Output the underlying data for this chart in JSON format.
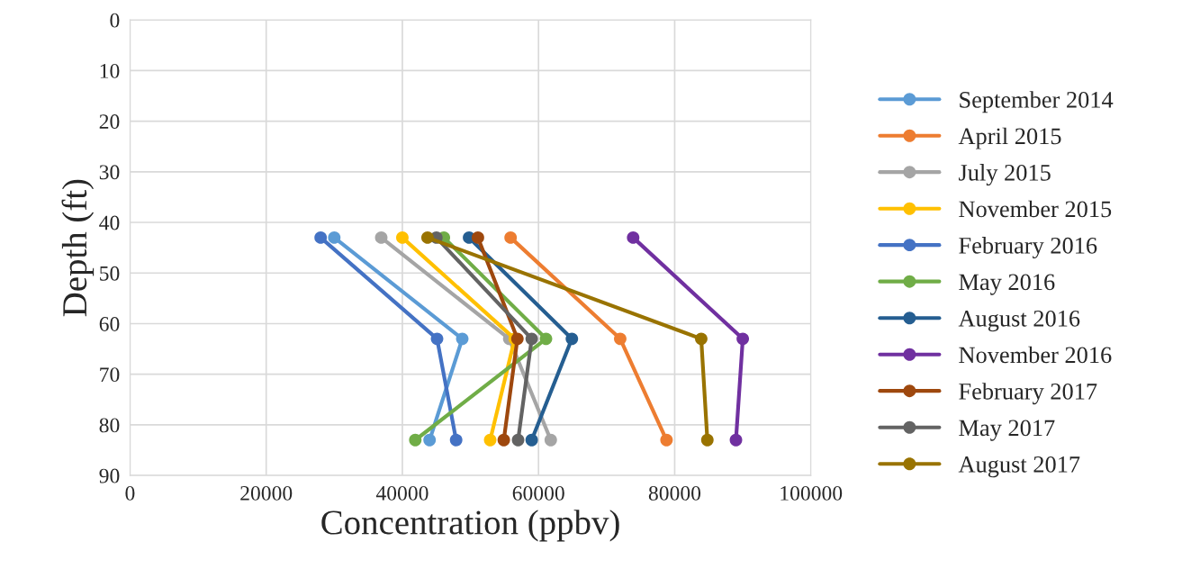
{
  "chart_data": {
    "type": "line",
    "xlabel": "Concentration (ppbv)",
    "ylabel": "Depth (ft)",
    "xlim": [
      0,
      100000
    ],
    "xticks": [
      0,
      20000,
      40000,
      60000,
      80000,
      100000
    ],
    "ylim": [
      90,
      0
    ],
    "yticks": [
      0,
      10,
      20,
      30,
      40,
      50,
      60,
      70,
      80,
      90
    ],
    "grid": true,
    "legend": "right",
    "marker": "circle",
    "line_style": "solid",
    "series": [
      {
        "name": "September 2014",
        "color": "#5b9bd5",
        "x": [
          30000,
          48800,
          44000
        ],
        "values": [
          43,
          63,
          83
        ]
      },
      {
        "name": "April 2015",
        "color": "#ed7d31",
        "x": [
          55900,
          72000,
          78800
        ],
        "values": [
          43,
          63,
          83
        ]
      },
      {
        "name": "July 2015",
        "color": "#a5a5a5",
        "x": [
          36900,
          55700,
          61800
        ],
        "values": [
          43,
          63,
          83
        ]
      },
      {
        "name": "November 2015",
        "color": "#ffc000",
        "x": [
          40000,
          56500,
          52900
        ],
        "values": [
          43,
          63,
          83
        ]
      },
      {
        "name": "February 2016",
        "color": "#4472c4",
        "x": [
          28000,
          45100,
          47900
        ],
        "values": [
          43,
          63,
          83
        ]
      },
      {
        "name": "May 2016",
        "color": "#70ad47",
        "x": [
          46100,
          61100,
          41900
        ],
        "values": [
          43,
          63,
          83
        ]
      },
      {
        "name": "August 2016",
        "color": "#255e91",
        "x": [
          49800,
          64900,
          59000
        ],
        "values": [
          43,
          63,
          83
        ]
      },
      {
        "name": "November 2016",
        "color": "#7030a0",
        "x": [
          73900,
          90000,
          89000
        ],
        "values": [
          43,
          63,
          83
        ]
      },
      {
        "name": "February 2017",
        "color": "#9e480e",
        "x": [
          51100,
          56900,
          54900
        ],
        "values": [
          43,
          63,
          83
        ]
      },
      {
        "name": "May 2017",
        "color": "#636363",
        "x": [
          45000,
          59000,
          57000
        ],
        "values": [
          43,
          63,
          83
        ]
      },
      {
        "name": "August 2017",
        "color": "#997300",
        "x": [
          43700,
          83900,
          84800
        ],
        "values": [
          43,
          63,
          83
        ]
      }
    ]
  }
}
